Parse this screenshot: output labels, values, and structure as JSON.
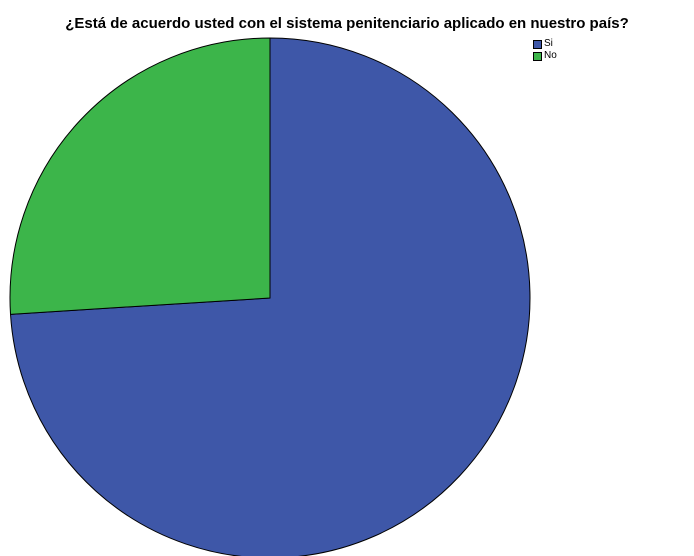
{
  "chart_data": {
    "type": "pie",
    "title": "¿Está de acuerdo usted con el sistema penitenciario aplicado en nuestro país?",
    "categories": [
      "Si",
      "No"
    ],
    "values": [
      74,
      26
    ],
    "colors": [
      "#3e57a8",
      "#3cb54a"
    ],
    "legend": "top-right"
  }
}
